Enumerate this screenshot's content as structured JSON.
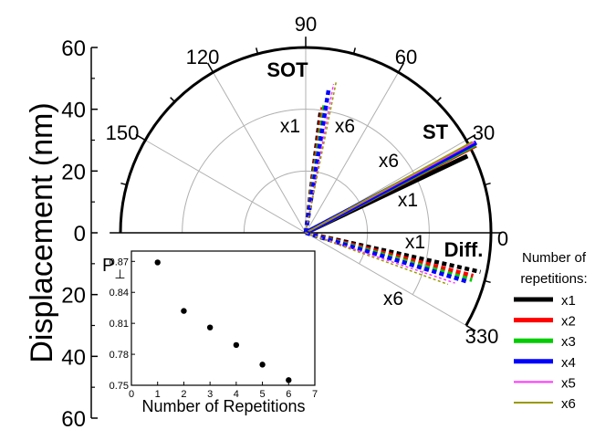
{
  "chart_data": [
    {
      "type": "line",
      "chart_kind": "polar-half",
      "ylabel": "Displacement (nm)",
      "y_ticks": [
        "60",
        "40",
        "20",
        "0",
        "20",
        "40",
        "60"
      ],
      "angle_ticks": [
        "90",
        "120",
        "150",
        "0",
        "30",
        "60",
        "330"
      ],
      "radial_max": 60,
      "radial_grid": [
        20,
        40,
        60
      ],
      "annotations": {
        "sot": "SOT",
        "st": "ST",
        "diff": "Diff.",
        "x1": "x1",
        "x6": "x6"
      },
      "legend": {
        "title_line1": "Number of",
        "title_line2": "repetitions:",
        "position": "right-bottom"
      },
      "colors": {
        "x1": "#000000",
        "x2": "#ff0000",
        "x3": "#00cc00",
        "x4": "#0000ff",
        "x5": "#ff33ff",
        "x6": "#999900"
      },
      "groups": [
        {
          "label": "SOT",
          "style": "dashed",
          "series": [
            {
              "name": "x1",
              "angle_deg": 83.0,
              "radius": 40.0
            },
            {
              "name": "x2",
              "angle_deg": 82.3,
              "radius": 41.0
            },
            {
              "name": "x3",
              "angle_deg": 81.6,
              "radius": 42.5
            },
            {
              "name": "x4",
              "angle_deg": 80.9,
              "radius": 47.0
            },
            {
              "name": "x5",
              "angle_deg": 79.4,
              "radius": 49.0
            },
            {
              "name": "x6",
              "angle_deg": 78.6,
              "radius": 50.0
            }
          ]
        },
        {
          "label": "ST",
          "style": "solid",
          "series": [
            {
              "name": "x1",
              "angle_deg": 25.4,
              "radius": 58.0
            },
            {
              "name": "x2",
              "angle_deg": 27.2,
              "radius": 62.0
            },
            {
              "name": "x3",
              "angle_deg": 27.5,
              "radius": 62.0
            },
            {
              "name": "x4",
              "angle_deg": 27.9,
              "radius": 62.5
            },
            {
              "name": "x5",
              "angle_deg": 28.3,
              "radius": 62.0
            },
            {
              "name": "x6",
              "angle_deg": 28.6,
              "radius": 61.5
            }
          ]
        },
        {
          "label": "Diff.",
          "style": "dashed",
          "series": [
            {
              "name": "x1",
              "angle_deg": -12.6,
              "radius": 58.0
            },
            {
              "name": "x2",
              "angle_deg": -14.4,
              "radius": 56.0
            },
            {
              "name": "x3",
              "angle_deg": -15.8,
              "radius": 56.0
            },
            {
              "name": "x4",
              "angle_deg": -16.8,
              "radius": 55.0
            },
            {
              "name": "x5",
              "angle_deg": -18.6,
              "radius": 51.0
            },
            {
              "name": "x6",
              "angle_deg": -19.9,
              "radius": 49.0
            }
          ]
        }
      ]
    },
    {
      "type": "scatter",
      "placement": "inset-bottom-left",
      "ylabel": "P⊥",
      "xlabel": "Number of Repetitions",
      "xlim": [
        0,
        7
      ],
      "ylim": [
        0.75,
        0.88
      ],
      "x_ticks": [
        "0",
        "1",
        "2",
        "3",
        "4",
        "5",
        "6",
        "7"
      ],
      "y_ticks": [
        "0.75",
        "0.78",
        "0.81",
        "0.84",
        "0.87"
      ],
      "x": [
        1,
        2,
        3,
        4,
        5,
        6
      ],
      "y": [
        0.869,
        0.822,
        0.806,
        0.789,
        0.77,
        0.755
      ]
    }
  ]
}
